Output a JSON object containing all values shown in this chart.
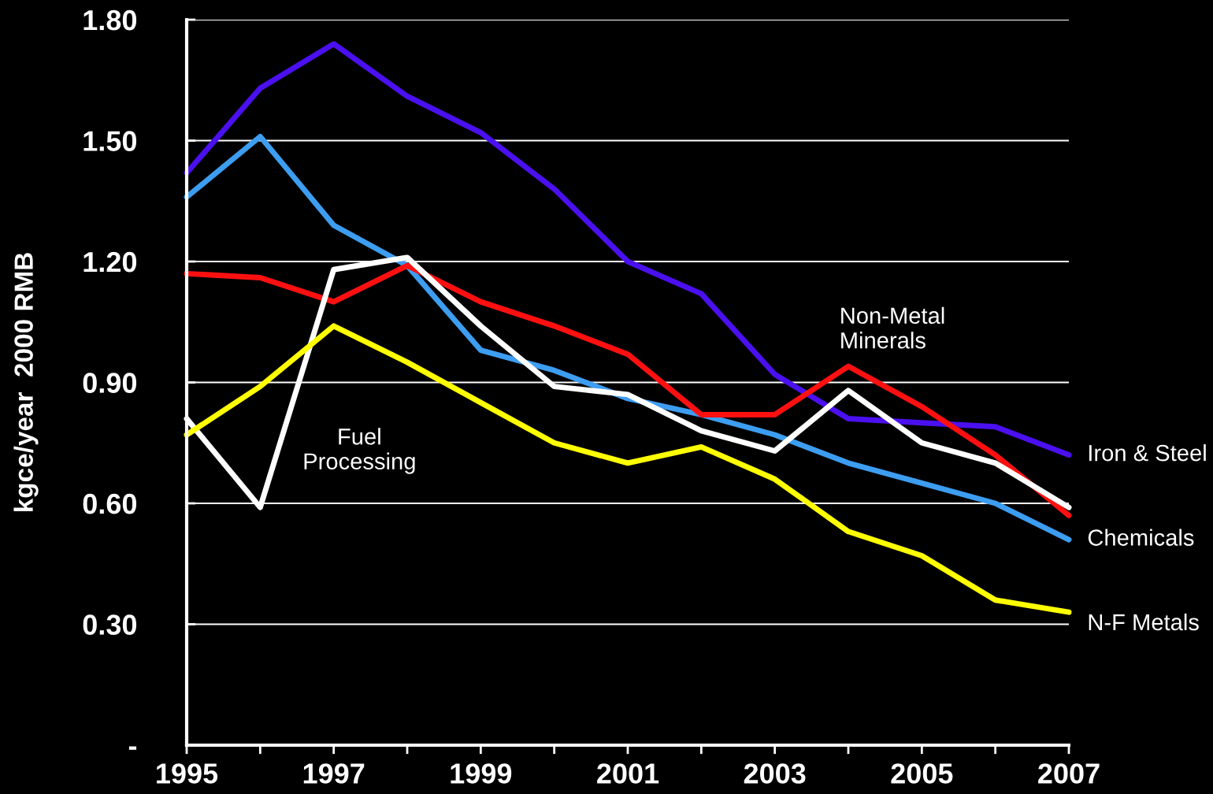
{
  "chart_data": {
    "type": "line",
    "ylabel": "kgce/year  2000 RMB",
    "x": [
      1995,
      1996,
      1997,
      1998,
      1999,
      2000,
      2001,
      2002,
      2003,
      2004,
      2005,
      2006,
      2007
    ],
    "series": [
      {
        "name": "Iron & Steel",
        "color": "#4b10f0",
        "values": [
          1.42,
          1.63,
          1.74,
          1.61,
          1.52,
          1.38,
          1.2,
          1.12,
          0.92,
          0.81,
          0.8,
          0.79,
          0.72
        ]
      },
      {
        "name": "Chemicals",
        "color": "#3d9df0",
        "values": [
          1.36,
          1.51,
          1.29,
          1.19,
          0.98,
          0.93,
          0.86,
          0.82,
          0.77,
          0.7,
          0.65,
          0.6,
          0.51
        ]
      },
      {
        "name": "Non-Metal Minerals",
        "color": "#ff1010",
        "values": [
          1.17,
          1.16,
          1.1,
          1.19,
          1.1,
          1.04,
          0.97,
          0.82,
          0.82,
          0.94,
          0.84,
          0.72,
          0.57
        ]
      },
      {
        "name": "Fuel Processing",
        "color": "#ffffff",
        "values": [
          0.81,
          0.59,
          1.18,
          1.21,
          1.04,
          0.89,
          0.87,
          0.78,
          0.73,
          0.88,
          0.75,
          0.7,
          0.59
        ]
      },
      {
        "name": "N-F Metals",
        "color": "#ffff00",
        "values": [
          0.77,
          0.89,
          1.04,
          0.95,
          0.85,
          0.75,
          0.7,
          0.74,
          0.66,
          0.53,
          0.47,
          0.36,
          0.33
        ]
      }
    ],
    "xlim": [
      1995,
      2007
    ],
    "xticks": [
      1995,
      {
        "value": 1996,
        "label": null
      },
      1997,
      {
        "value": 1998,
        "label": null
      },
      1999,
      {
        "value": 2000,
        "label": null
      },
      2001,
      {
        "value": 2002,
        "label": null
      },
      2003,
      {
        "value": 2004,
        "label": null
      },
      2005,
      {
        "value": 2006,
        "label": null
      },
      2007
    ],
    "ylim": [
      0,
      1.8
    ],
    "yticks": [
      {
        "value": 0,
        "label": "-"
      },
      {
        "value": 0.3,
        "label": "0.30"
      },
      {
        "value": 0.6,
        "label": "0.60"
      },
      {
        "value": 0.9,
        "label": "0.90"
      },
      {
        "value": 1.2,
        "label": "1.20"
      },
      {
        "value": 1.5,
        "label": "1.50"
      },
      {
        "value": 1.8,
        "label": "1.80"
      }
    ],
    "grid": "y",
    "legend": false,
    "marker": "none",
    "line_style": "solid"
  }
}
